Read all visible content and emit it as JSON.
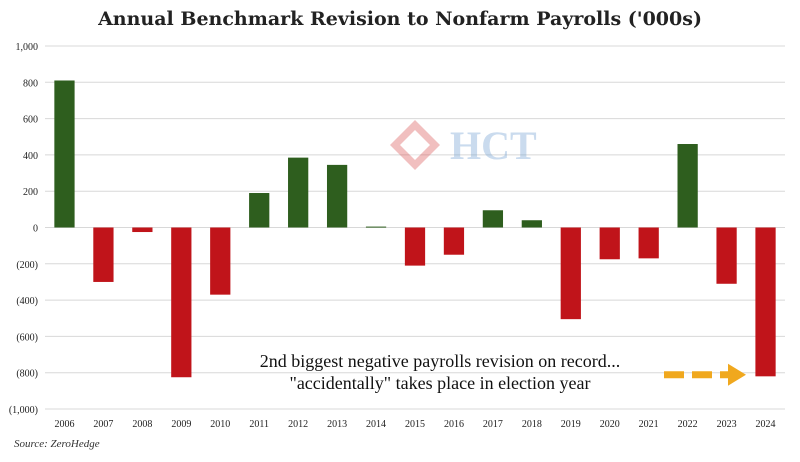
{
  "chart_data": {
    "type": "bar",
    "title": "Annual Benchmark Revision to Nonfarm Payrolls ('000s)",
    "xlabel": "",
    "ylabel": "",
    "categories": [
      "2006",
      "2007",
      "2008",
      "2009",
      "2010",
      "2011",
      "2012",
      "2013",
      "2014",
      "2015",
      "2016",
      "2017",
      "2018",
      "2019",
      "2020",
      "2021",
      "2022",
      "2023",
      "2024"
    ],
    "values": [
      810,
      -300,
      -25,
      -825,
      -370,
      190,
      385,
      345,
      5,
      -210,
      -150,
      95,
      40,
      -505,
      -175,
      -170,
      460,
      -310,
      -820
    ],
    "ylim": [
      -1000,
      1000
    ],
    "y_ticks": [
      {
        "value": 1000,
        "label": "1,000"
      },
      {
        "value": 800,
        "label": "800"
      },
      {
        "value": 600,
        "label": "600"
      },
      {
        "value": 400,
        "label": "400"
      },
      {
        "value": 200,
        "label": "200"
      },
      {
        "value": 0,
        "label": "0"
      },
      {
        "value": -200,
        "label": "(200)"
      },
      {
        "value": -400,
        "label": "(400)"
      },
      {
        "value": -600,
        "label": "(600)"
      },
      {
        "value": -800,
        "label": "(800)"
      },
      {
        "value": -1000,
        "label": "(1,000)"
      }
    ],
    "grid": true,
    "legend": "none",
    "colors": {
      "positive": "#2e5e1e",
      "negative": "#c0141a",
      "arrow": "#f0a81e"
    },
    "annotation": {
      "line1": "2nd  biggest negative payrolls revision on record...",
      "line2": "\"accidentally\" takes place in election year"
    }
  },
  "source": "Source: ZeroHedge",
  "watermark": {
    "text": "HCT",
    "icon": "hct-logo-icon"
  }
}
